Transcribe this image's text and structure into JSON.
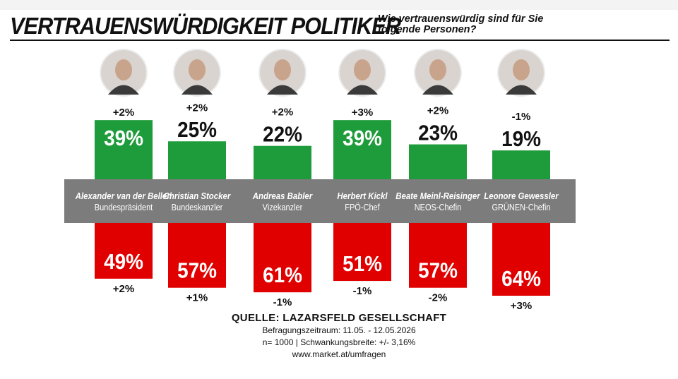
{
  "header": {
    "title": "VERTRAUENSWÜRDIGKEIT POLITIKER",
    "subtitle": "Wie vertrauenswürdig sind für Sie folgende Personen?"
  },
  "chart_data": {
    "type": "bar",
    "colors": {
      "trust": "#1e9b3a",
      "distrust": "#e00000",
      "band": "#7c7c7c"
    },
    "ylim_trust": [
      0,
      40
    ],
    "ylim_distrust": [
      0,
      64
    ],
    "people": [
      {
        "name": "Alexander van der Bellen",
        "role": "Bundespräsident",
        "trust": 39,
        "trust_label": "39%",
        "trust_change": "+2%",
        "distrust": 49,
        "distrust_label": "49%",
        "distrust_change": "+2%",
        "portrait": "portrait-icon"
      },
      {
        "name": "Christian Stocker",
        "role": "Bundeskanzler",
        "trust": 25,
        "trust_label": "25%",
        "trust_change": "+2%",
        "distrust": 57,
        "distrust_label": "57%",
        "distrust_change": "+1%",
        "portrait": "portrait-icon"
      },
      {
        "name": "Andreas Babler",
        "role": "Vizekanzler",
        "trust": 22,
        "trust_label": "22%",
        "trust_change": "+2%",
        "distrust": 61,
        "distrust_label": "61%",
        "distrust_change": "-1%",
        "portrait": "portrait-icon"
      },
      {
        "name": "Herbert Kickl",
        "role": "FPÖ-Chef",
        "trust": 39,
        "trust_label": "39%",
        "trust_change": "+3%",
        "distrust": 51,
        "distrust_label": "51%",
        "distrust_change": "-1%",
        "portrait": "portrait-icon"
      },
      {
        "name": "Beate Meinl-Reisinger",
        "role": "NEOS-Chefin",
        "trust": 23,
        "trust_label": "23%",
        "trust_change": "+2%",
        "distrust": 57,
        "distrust_label": "57%",
        "distrust_change": "-2%",
        "portrait": "portrait-icon"
      },
      {
        "name": "Leonore Gewessler",
        "role": "GRÜNEN-Chefin",
        "trust": 19,
        "trust_label": "19%",
        "trust_change": "-1%",
        "distrust": 64,
        "distrust_label": "64%",
        "distrust_change": "+3%",
        "portrait": "portrait-icon"
      }
    ]
  },
  "source": {
    "title": "QUELLE: LAZARSFELD GESELLSCHAFT",
    "period": "Befragungszeitraum: 11.05. - 12.05.2026",
    "sample": "n= 1000 | Schwankungsbreite: +/- 3,16%",
    "url": "www.market.at/umfragen"
  }
}
